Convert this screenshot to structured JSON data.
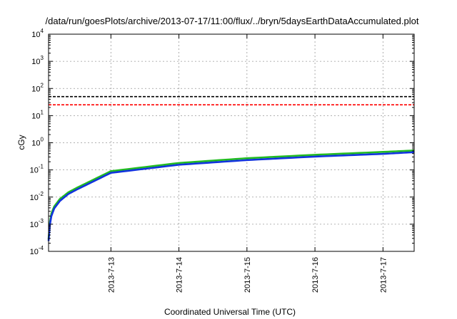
{
  "chart_data": {
    "type": "line",
    "title": "/data/run/goesPlots/archive/2013-07-17/11:00/flux/../bryn/5daysEarthDataAccumulated.plot",
    "xlabel": "Coordinated Universal Time (UTC)",
    "ylabel": "cGy",
    "yscale": "log",
    "ylim": [
      0.0001,
      10000
    ],
    "xlim": [
      "2013-07-12 02:00",
      "2013-07-17 11:00"
    ],
    "y_ticks": [
      {
        "base": "10",
        "exp": "-4",
        "value": 0.0001
      },
      {
        "base": "10",
        "exp": "-3",
        "value": 0.001
      },
      {
        "base": "10",
        "exp": "-2",
        "value": 0.01
      },
      {
        "base": "10",
        "exp": "-1",
        "value": 0.1
      },
      {
        "base": "10",
        "exp": "0",
        "value": 1
      },
      {
        "base": "10",
        "exp": "1",
        "value": 10
      },
      {
        "base": "10",
        "exp": "2",
        "value": 100
      },
      {
        "base": "10",
        "exp": "3",
        "value": 1000
      },
      {
        "base": "10",
        "exp": "4",
        "value": 10000
      }
    ],
    "x_ticks": [
      {
        "label": "2013-7-13",
        "value": "2013-07-13 00:00"
      },
      {
        "label": "2013-7-14",
        "value": "2013-07-14 00:00"
      },
      {
        "label": "2013-7-15",
        "value": "2013-07-15 00:00"
      },
      {
        "label": "2013-7-16",
        "value": "2013-07-16 00:00"
      },
      {
        "label": "2013-7-17",
        "value": "2013-07-17 00:00"
      }
    ],
    "grid": true,
    "series": [
      {
        "color": "#000000",
        "style": "dashed",
        "x": [
          "2013-07-12 02:00",
          "2013-07-17 11:00"
        ],
        "y": [
          50,
          50
        ]
      },
      {
        "color": "#ff0000",
        "style": "dashed",
        "x": [
          "2013-07-12 02:00",
          "2013-07-17 11:00"
        ],
        "y": [
          25,
          25
        ]
      },
      {
        "color": "#22bb22",
        "style": "solid",
        "x": [
          "2013-07-12 02:00",
          "2013-07-12 02:30",
          "2013-07-12 03:00",
          "2013-07-12 04:00",
          "2013-07-12 06:00",
          "2013-07-12 09:00",
          "2013-07-12 12:00",
          "2013-07-13 00:00",
          "2013-07-14 00:00",
          "2013-07-15 00:00",
          "2013-07-16 00:00",
          "2013-07-17 00:00",
          "2013-07-17 11:00"
        ],
        "y": [
          0.00028,
          0.0012,
          0.0025,
          0.0045,
          0.0085,
          0.015,
          0.022,
          0.09,
          0.18,
          0.27,
          0.36,
          0.46,
          0.52
        ]
      },
      {
        "color": "#1133dd",
        "style": "solid",
        "x": [
          "2013-07-12 02:00",
          "2013-07-12 02:30",
          "2013-07-12 03:00",
          "2013-07-12 04:00",
          "2013-07-12 06:00",
          "2013-07-12 09:00",
          "2013-07-12 12:00",
          "2013-07-13 00:00",
          "2013-07-14 00:00",
          "2013-07-15 00:00",
          "2013-07-16 00:00",
          "2013-07-17 00:00",
          "2013-07-17 11:00"
        ],
        "y": [
          0.00024,
          0.001,
          0.002,
          0.0038,
          0.0072,
          0.013,
          0.019,
          0.078,
          0.155,
          0.23,
          0.31,
          0.39,
          0.45
        ]
      }
    ]
  }
}
